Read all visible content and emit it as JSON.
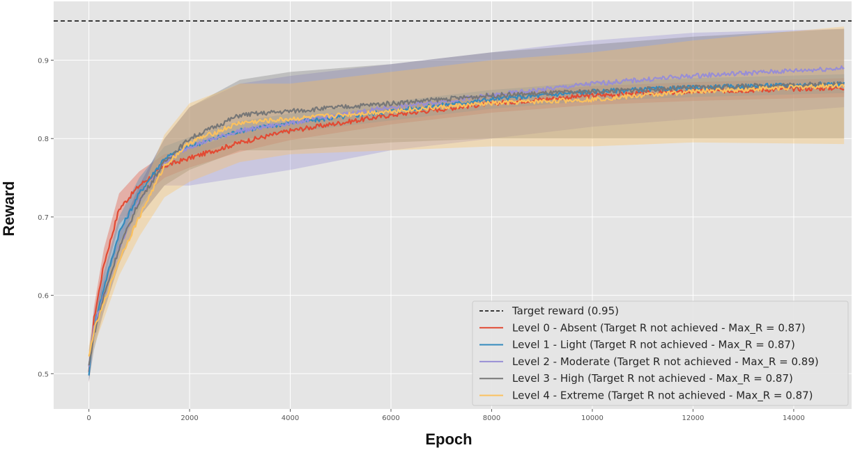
{
  "chart_data": {
    "type": "line",
    "title": "",
    "xlabel": "Epoch",
    "ylabel": "Reward",
    "xlim": [
      -700,
      15150
    ],
    "ylim": [
      0.455,
      0.975
    ],
    "xticks": [
      0,
      2000,
      4000,
      6000,
      8000,
      10000,
      12000,
      14000
    ],
    "xtick_labels": [
      "0",
      "2000",
      "4000",
      "6000",
      "8000",
      "10000",
      "12000",
      "14000"
    ],
    "yticks": [
      0.5,
      0.6,
      0.7,
      0.8,
      0.9
    ],
    "ytick_labels": [
      "0.5",
      "0.6",
      "0.7",
      "0.8",
      "0.9"
    ],
    "grid": true,
    "legend_position": "bottom-right",
    "target": {
      "value": 0.95,
      "label": "Target reward (0.95)",
      "color": "#000000"
    },
    "series": [
      {
        "name": "Level 0 - Absent (Target R not achieved - Max_R = 0.87)",
        "color": "#e24a33",
        "x": [
          0,
          100,
          300,
          600,
          1000,
          1500,
          2000,
          3000,
          4000,
          6000,
          8000,
          10000,
          12000,
          15000
        ],
        "y": [
          0.5,
          0.57,
          0.64,
          0.71,
          0.74,
          0.765,
          0.775,
          0.795,
          0.81,
          0.83,
          0.845,
          0.855,
          0.86,
          0.865
        ],
        "band": [
          0.012,
          0.015,
          0.02,
          0.02,
          0.018,
          0.015,
          0.012,
          0.012,
          0.012,
          0.012,
          0.012,
          0.012,
          0.012,
          0.012
        ]
      },
      {
        "name": "Level 1 - Light (Target R not achieved - Max_R = 0.87)",
        "color": "#348abd",
        "x": [
          0,
          100,
          300,
          600,
          1000,
          1500,
          2000,
          3000,
          4000,
          6000,
          8000,
          10000,
          12000,
          15000
        ],
        "y": [
          0.5,
          0.56,
          0.61,
          0.68,
          0.73,
          0.775,
          0.79,
          0.81,
          0.82,
          0.835,
          0.85,
          0.86,
          0.865,
          0.87
        ],
        "band": [
          0.01,
          0.015,
          0.02,
          0.02,
          0.02,
          0.015,
          0.012,
          0.012,
          0.012,
          0.012,
          0.012,
          0.012,
          0.012,
          0.012
        ]
      },
      {
        "name": "Level 2 - Moderate (Target R not achieved - Max_R = 0.89)",
        "color": "#988ed5",
        "x": [
          0,
          100,
          300,
          600,
          1000,
          1500,
          2000,
          3000,
          4000,
          6000,
          8000,
          10000,
          12000,
          15000
        ],
        "y": [
          0.51,
          0.56,
          0.6,
          0.66,
          0.72,
          0.77,
          0.79,
          0.81,
          0.82,
          0.84,
          0.855,
          0.87,
          0.88,
          0.89
        ],
        "band": [
          0.02,
          0.02,
          0.02,
          0.02,
          0.02,
          0.03,
          0.05,
          0.06,
          0.06,
          0.055,
          0.055,
          0.055,
          0.055,
          0.05
        ]
      },
      {
        "name": "Level 3 - High (Target R not achieved - Max_R = 0.87)",
        "color": "#777777",
        "x": [
          0,
          100,
          300,
          600,
          1000,
          1500,
          2000,
          3000,
          4000,
          6000,
          8000,
          10000,
          12000,
          15000
        ],
        "y": [
          0.51,
          0.55,
          0.6,
          0.66,
          0.72,
          0.77,
          0.8,
          0.83,
          0.835,
          0.845,
          0.855,
          0.86,
          0.865,
          0.87
        ],
        "band": [
          0.02,
          0.02,
          0.02,
          0.02,
          0.02,
          0.03,
          0.04,
          0.045,
          0.05,
          0.05,
          0.055,
          0.06,
          0.065,
          0.07
        ]
      },
      {
        "name": "Level 4 - Extreme (Target R not achieved - Max_R = 0.87)",
        "color": "#fbc15e",
        "x": [
          0,
          100,
          300,
          600,
          1000,
          1500,
          2000,
          3000,
          4000,
          6000,
          8000,
          10000,
          12000,
          15000
        ],
        "y": [
          0.52,
          0.555,
          0.59,
          0.645,
          0.7,
          0.765,
          0.795,
          0.82,
          0.825,
          0.835,
          0.845,
          0.85,
          0.86,
          0.868
        ],
        "band": [
          0.015,
          0.02,
          0.02,
          0.02,
          0.025,
          0.04,
          0.05,
          0.05,
          0.045,
          0.05,
          0.055,
          0.06,
          0.065,
          0.075
        ]
      }
    ]
  }
}
